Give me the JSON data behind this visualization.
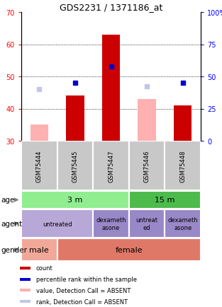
{
  "title": "GDS2231 / 1371186_at",
  "samples": [
    "GSM75444",
    "GSM75445",
    "GSM75447",
    "GSM75446",
    "GSM75448"
  ],
  "count_values": [
    null,
    44,
    63,
    43,
    41
  ],
  "pink_bar_values": [
    35,
    null,
    null,
    43,
    null
  ],
  "blue_square_values": [
    null,
    48,
    53,
    null,
    48
  ],
  "light_blue_square_values": [
    46,
    null,
    null,
    47,
    null
  ],
  "ylim": [
    30,
    70
  ],
  "left_yticks": [
    30,
    40,
    50,
    60,
    70
  ],
  "right_yticks": [
    0,
    25,
    50,
    75,
    100
  ],
  "right_ytick_labels": [
    "0",
    "25",
    "50",
    "75",
    "100%"
  ],
  "dotted_lines": [
    40,
    50,
    60
  ],
  "age_groups": [
    {
      "label": "3 m",
      "cols": [
        0,
        1,
        2
      ],
      "color": "#90EE90"
    },
    {
      "label": "15 m",
      "cols": [
        3,
        4
      ],
      "color": "#4CBB4C"
    }
  ],
  "agent_groups": [
    {
      "label": "untreated",
      "cols": [
        0,
        1
      ],
      "color": "#B8A8D8"
    },
    {
      "label": "dexameth\nasone",
      "cols": [
        2
      ],
      "color": "#9888C8"
    },
    {
      "label": "untreat\ned",
      "cols": [
        3
      ],
      "color": "#9888C8"
    },
    {
      "label": "dexameth\nasone",
      "cols": [
        4
      ],
      "color": "#9888C8"
    }
  ],
  "gender_groups": [
    {
      "label": "male",
      "cols": [
        0
      ],
      "color": "#F2A898"
    },
    {
      "label": "female",
      "cols": [
        1,
        2,
        3,
        4
      ],
      "color": "#E07868"
    }
  ],
  "legend_items": [
    {
      "color": "#CC0000",
      "label": "count"
    },
    {
      "color": "#0000CC",
      "label": "percentile rank within the sample"
    },
    {
      "color": "#FFB0B0",
      "label": "value, Detection Call = ABSENT"
    },
    {
      "color": "#C0C8E8",
      "label": "rank, Detection Call = ABSENT"
    }
  ],
  "sample_bg_color": "#C8C8C8",
  "bar_color": "#CC0000",
  "pink_bar_color": "#FFB0B0",
  "blue_sq_color": "#0000CC",
  "light_blue_sq_color": "#C0C8E8",
  "row_labels": [
    "age",
    "agent",
    "gender"
  ]
}
